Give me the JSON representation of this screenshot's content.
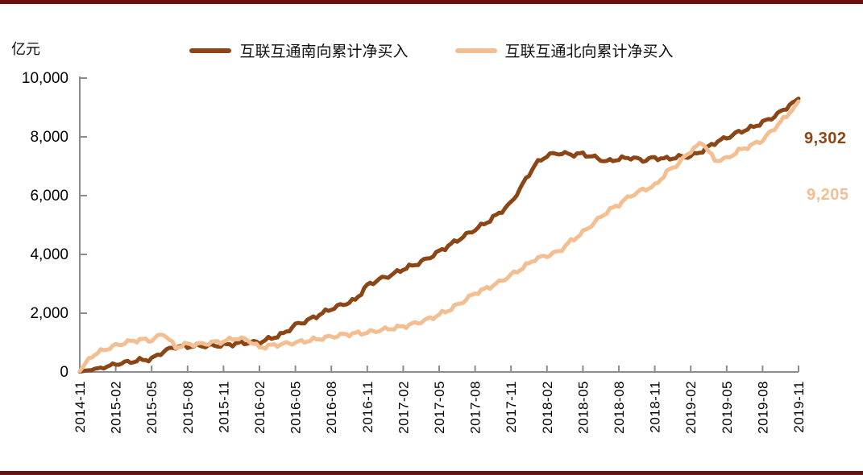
{
  "page": {
    "background": "#FFFFFF",
    "top_border_color": "#6A1113",
    "bottom_border_color": "#6A1113"
  },
  "chart_data": {
    "type": "line",
    "unit_label": "亿元",
    "title": "",
    "legend_position": "top",
    "grid": false,
    "axis_color": "#8C8C8C",
    "tick_label_color": "#000000",
    "ylim": [
      0,
      10000
    ],
    "y_ticks": [
      "0",
      "2,000",
      "4,000",
      "6,000",
      "8,000",
      "10,000"
    ],
    "y_tick_values": [
      0,
      2000,
      4000,
      6000,
      8000,
      10000
    ],
    "x_tick_labels": [
      "2014-11",
      "2015-02",
      "2015-05",
      "2015-08",
      "2015-11",
      "2016-02",
      "2016-05",
      "2016-08",
      "2016-11",
      "2017-02",
      "2017-05",
      "2017-08",
      "2017-11",
      "2018-02",
      "2018-05",
      "2018-08",
      "2018-11",
      "2019-02",
      "2019-05",
      "2019-08",
      "2019-11"
    ],
    "x_months": [
      "2014-11",
      "2014-12",
      "2015-01",
      "2015-02",
      "2015-03",
      "2015-04",
      "2015-05",
      "2015-06",
      "2015-07",
      "2015-08",
      "2015-09",
      "2015-10",
      "2015-11",
      "2015-12",
      "2016-01",
      "2016-02",
      "2016-03",
      "2016-04",
      "2016-05",
      "2016-06",
      "2016-07",
      "2016-08",
      "2016-09",
      "2016-10",
      "2016-11",
      "2016-12",
      "2017-01",
      "2017-02",
      "2017-03",
      "2017-04",
      "2017-05",
      "2017-06",
      "2017-07",
      "2017-08",
      "2017-09",
      "2017-10",
      "2017-11",
      "2017-12",
      "2018-01",
      "2018-02",
      "2018-03",
      "2018-04",
      "2018-05",
      "2018-06",
      "2018-07",
      "2018-08",
      "2018-09",
      "2018-10",
      "2018-11",
      "2018-12",
      "2019-01",
      "2019-02",
      "2019-03",
      "2019-04",
      "2019-05",
      "2019-06",
      "2019-07",
      "2019-08",
      "2019-09",
      "2019-10",
      "2019-11"
    ],
    "series": [
      {
        "name": "互联互通南向累计净买入",
        "color": "#8C4615",
        "end_label": "9,302",
        "end_value": 9302,
        "values": [
          10,
          80,
          150,
          270,
          330,
          400,
          440,
          700,
          860,
          870,
          890,
          890,
          910,
          960,
          1000,
          1010,
          1150,
          1300,
          1600,
          1750,
          1950,
          2150,
          2300,
          2450,
          2950,
          3150,
          3300,
          3500,
          3650,
          3850,
          4100,
          4350,
          4600,
          4850,
          5100,
          5400,
          5750,
          6400,
          7050,
          7370,
          7450,
          7400,
          7420,
          7300,
          7160,
          7250,
          7300,
          7200,
          7290,
          7250,
          7320,
          7340,
          7530,
          7800,
          7970,
          8160,
          8300,
          8490,
          8700,
          9000,
          9302
        ]
      },
      {
        "name": "互联互通北向累计净买入",
        "color": "#F3BF92",
        "end_label": "9,205",
        "end_value": 9205,
        "values": [
          30,
          550,
          750,
          900,
          1020,
          1100,
          1080,
          1310,
          840,
          950,
          940,
          1000,
          1040,
          1150,
          1100,
          830,
          900,
          950,
          1000,
          1060,
          1130,
          1200,
          1270,
          1310,
          1340,
          1420,
          1480,
          1550,
          1650,
          1780,
          1950,
          2150,
          2400,
          2680,
          2850,
          3050,
          3300,
          3550,
          3840,
          3960,
          4100,
          4450,
          4750,
          5100,
          5450,
          5700,
          6000,
          6200,
          6330,
          6800,
          7100,
          7530,
          7810,
          7200,
          7260,
          7530,
          7700,
          7890,
          8300,
          8710,
          9205
        ]
      }
    ]
  }
}
